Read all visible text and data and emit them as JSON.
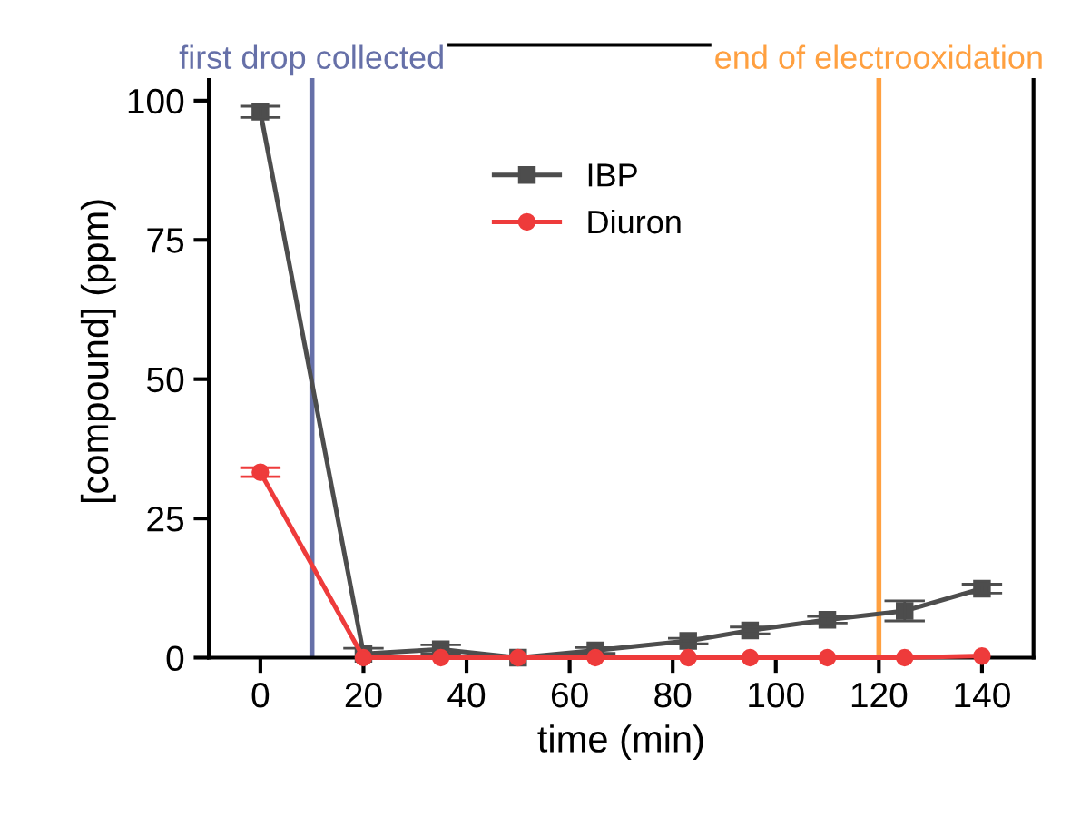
{
  "chart_data": {
    "type": "line",
    "xlabel": "time (min)",
    "ylabel": "[compound] (ppm)",
    "xlim": [
      -10,
      150
    ],
    "xticks": [
      0,
      20,
      40,
      60,
      80,
      100,
      120,
      140
    ],
    "ylim": [
      0,
      110
    ],
    "yticks": [
      0,
      25,
      50,
      75,
      100
    ],
    "grid": false,
    "legend": "top",
    "series": [
      {
        "name": "IBP",
        "color": "#4d4d4d",
        "marker": "square",
        "x": [
          0,
          20,
          35,
          50,
          65,
          83,
          95,
          110,
          125,
          140
        ],
        "values": [
          98,
          0.7,
          1.5,
          0,
          1.3,
          3,
          4.9,
          6.8,
          8.4,
          12.4
        ],
        "errors": [
          1,
          1,
          0.8,
          null,
          0.5,
          0.5,
          0.6,
          0.6,
          1.8,
          0.8
        ]
      },
      {
        "name": "Diuron",
        "color": "#ee3b3b",
        "marker": "circle",
        "x": [
          0,
          20,
          35,
          50,
          65,
          83,
          95,
          110,
          125,
          140
        ],
        "values": [
          33.3,
          0,
          0,
          0,
          0,
          0,
          0,
          0,
          0,
          0.3
        ],
        "errors": [
          0.8,
          null,
          null,
          null,
          null,
          null,
          null,
          null,
          null,
          null
        ]
      }
    ],
    "ref_lines": [
      {
        "axis": "x",
        "value": 10,
        "label": "first drop collected",
        "color": "#6670a8"
      },
      {
        "axis": "x",
        "value": 120,
        "label": "end of electrooxidation",
        "color": "#ffa040"
      }
    ]
  }
}
